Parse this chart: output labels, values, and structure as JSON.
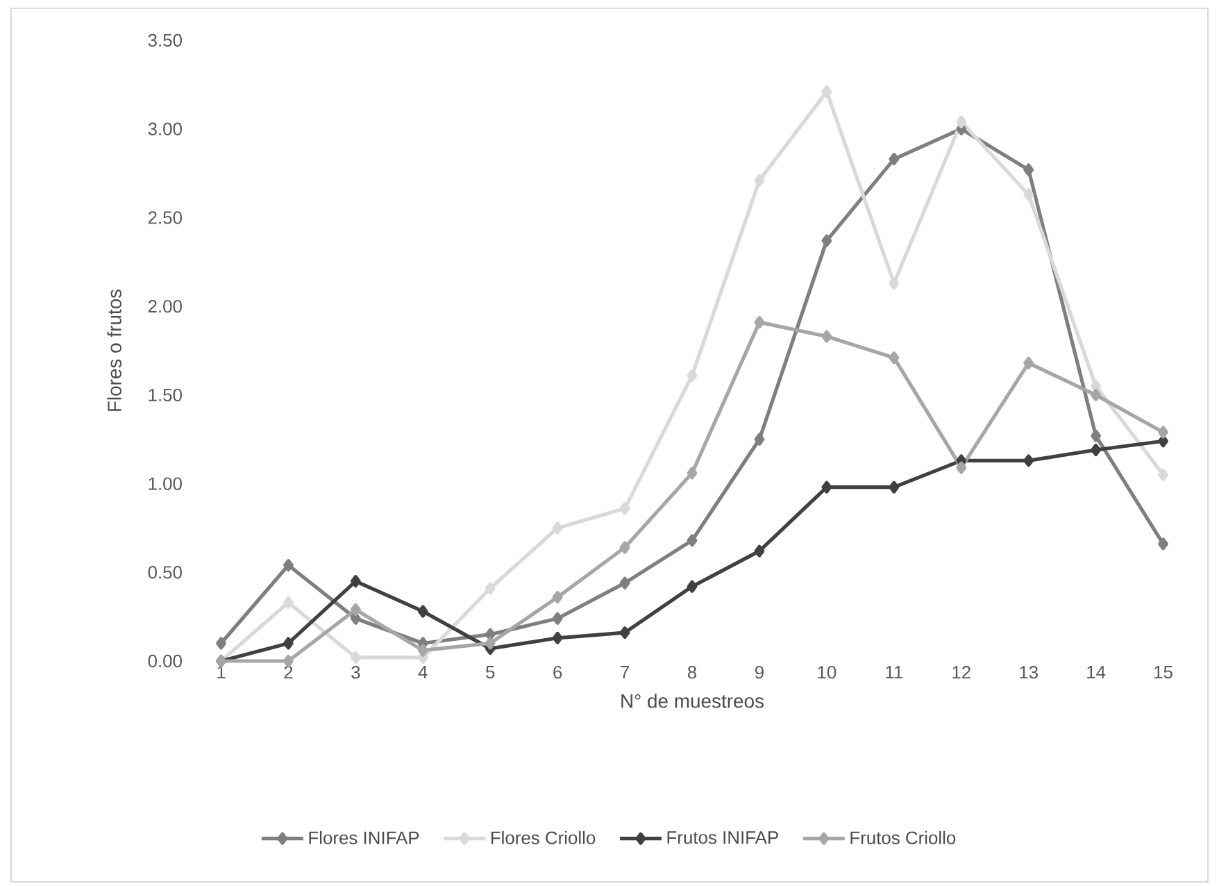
{
  "chart_data": {
    "type": "line",
    "xlabel": "N° de muestreos",
    "ylabel": "Flores o frutos",
    "categories": [
      "1",
      "2",
      "3",
      "4",
      "5",
      "6",
      "7",
      "8",
      "9",
      "10",
      "11",
      "12",
      "13",
      "14",
      "15"
    ],
    "series": [
      {
        "name": "Flores INIFAP",
        "color": "#7f7f7f",
        "values": [
          0.1,
          0.54,
          0.24,
          0.1,
          0.15,
          0.24,
          0.44,
          0.68,
          1.25,
          2.37,
          2.83,
          3.0,
          2.77,
          1.27,
          0.66
        ]
      },
      {
        "name": "Flores Criollo",
        "color": "#d9d9d9",
        "values": [
          0.0,
          0.33,
          0.02,
          0.02,
          0.41,
          0.75,
          0.86,
          1.61,
          2.71,
          3.21,
          2.13,
          3.04,
          2.63,
          1.55,
          1.05
        ]
      },
      {
        "name": "Frutos INIFAP",
        "color": "#404040",
        "values": [
          0.0,
          0.1,
          0.45,
          0.28,
          0.07,
          0.13,
          0.16,
          0.42,
          0.62,
          0.98,
          0.98,
          1.13,
          1.13,
          1.19,
          1.24
        ]
      },
      {
        "name": "Frutos Criollo",
        "color": "#a6a6a6",
        "values": [
          0.0,
          0.0,
          0.29,
          0.06,
          0.1,
          0.36,
          0.64,
          1.06,
          1.91,
          1.83,
          1.71,
          1.09,
          1.68,
          1.5,
          1.29
        ]
      }
    ],
    "ylim": [
      0,
      3.5
    ],
    "yticks": [
      {
        "value": 0,
        "label": "0.00"
      },
      {
        "value": 0.5,
        "label": "0.50"
      },
      {
        "value": 1,
        "label": "1.00"
      },
      {
        "value": 1.5,
        "label": "1.50"
      },
      {
        "value": 2,
        "label": "2.00"
      },
      {
        "value": 2.5,
        "label": "2.50"
      },
      {
        "value": 3,
        "label": "3.00"
      },
      {
        "value": 3.5,
        "label": "3.50"
      }
    ],
    "legend": "bottom",
    "marker": "diamond",
    "line_style": "solid"
  }
}
